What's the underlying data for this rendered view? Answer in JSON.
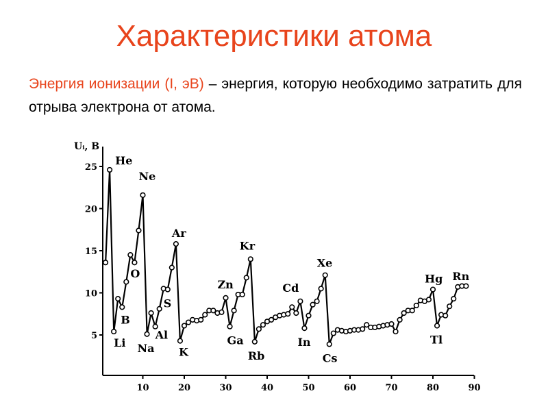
{
  "slide": {
    "title": "Характеристики атома",
    "definition_term": "Энергия ионизации (I, эВ)",
    "definition_rest": " – энергия, которую необходимо затратить для отрыва электрона от атома."
  },
  "colors": {
    "accent": "#e8441c",
    "line": "#000000"
  },
  "chart_data": {
    "type": "line",
    "ylabel": "Uᵢ, B",
    "xlim": [
      0,
      90
    ],
    "ylim": [
      0,
      27
    ],
    "x_ticks": [
      10,
      20,
      30,
      40,
      50,
      60,
      70,
      80,
      90
    ],
    "y_ticks": [
      5,
      10,
      15,
      20,
      25
    ],
    "grid": false,
    "series": [
      {
        "x": [
          1,
          2,
          3,
          4,
          5,
          6,
          7,
          8,
          9,
          10,
          11,
          12,
          13,
          14,
          15,
          16,
          17,
          18,
          19,
          20,
          21,
          22,
          23,
          24,
          25,
          26,
          27,
          28,
          29,
          30,
          31,
          32,
          33,
          34,
          35,
          36,
          37,
          38,
          39,
          40,
          41,
          42,
          43,
          44,
          45,
          46,
          47,
          48,
          49,
          50,
          51,
          52,
          53,
          54,
          55,
          56,
          57,
          58,
          59,
          60,
          61,
          62,
          63,
          64,
          65,
          66,
          67,
          68,
          69,
          70,
          71,
          72,
          73,
          74,
          75,
          76,
          77,
          78,
          79,
          80,
          81,
          82,
          83,
          84,
          85,
          86,
          87,
          88
        ],
        "y": [
          13.6,
          24.6,
          5.4,
          9.3,
          8.3,
          11.3,
          14.5,
          13.6,
          17.4,
          21.6,
          5.1,
          7.6,
          6.0,
          8.1,
          10.5,
          10.4,
          13.0,
          15.8,
          4.3,
          6.1,
          6.5,
          6.8,
          6.7,
          6.8,
          7.4,
          7.9,
          7.9,
          7.6,
          7.7,
          9.4,
          6.0,
          7.9,
          9.8,
          9.8,
          11.8,
          14.0,
          4.2,
          5.7,
          6.2,
          6.6,
          6.8,
          7.1,
          7.3,
          7.4,
          7.5,
          8.3,
          7.6,
          9.0,
          5.8,
          7.3,
          8.6,
          9.0,
          10.5,
          12.1,
          3.9,
          5.2,
          5.6,
          5.5,
          5.4,
          5.5,
          5.6,
          5.6,
          5.7,
          6.2,
          5.9,
          5.9,
          6.0,
          6.1,
          6.2,
          6.3,
          5.4,
          6.8,
          7.6,
          7.9,
          7.9,
          8.5,
          9.1,
          9.0,
          9.2,
          10.4,
          6.1,
          7.4,
          7.3,
          8.4,
          9.3,
          10.7,
          10.8,
          10.8
        ]
      }
    ],
    "annotations": [
      {
        "text": "He",
        "z": 2
      },
      {
        "text": "Li",
        "z": 3
      },
      {
        "text": "B",
        "z": 5
      },
      {
        "text": "O",
        "z": 8
      },
      {
        "text": "Ne",
        "z": 10
      },
      {
        "text": "Na",
        "z": 11
      },
      {
        "text": "Al",
        "z": 13
      },
      {
        "text": "S",
        "z": 16
      },
      {
        "text": "Ar",
        "z": 18
      },
      {
        "text": "K",
        "z": 19
      },
      {
        "text": "Zn",
        "z": 30
      },
      {
        "text": "Ga",
        "z": 31
      },
      {
        "text": "Kr",
        "z": 36
      },
      {
        "text": "Rb",
        "z": 37
      },
      {
        "text": "Cd",
        "z": 48
      },
      {
        "text": "In",
        "z": 49
      },
      {
        "text": "Xe",
        "z": 54
      },
      {
        "text": "Cs",
        "z": 55
      },
      {
        "text": "Hg",
        "z": 80
      },
      {
        "text": "Tl",
        "z": 81
      },
      {
        "text": "Rn",
        "z": 86
      }
    ]
  }
}
